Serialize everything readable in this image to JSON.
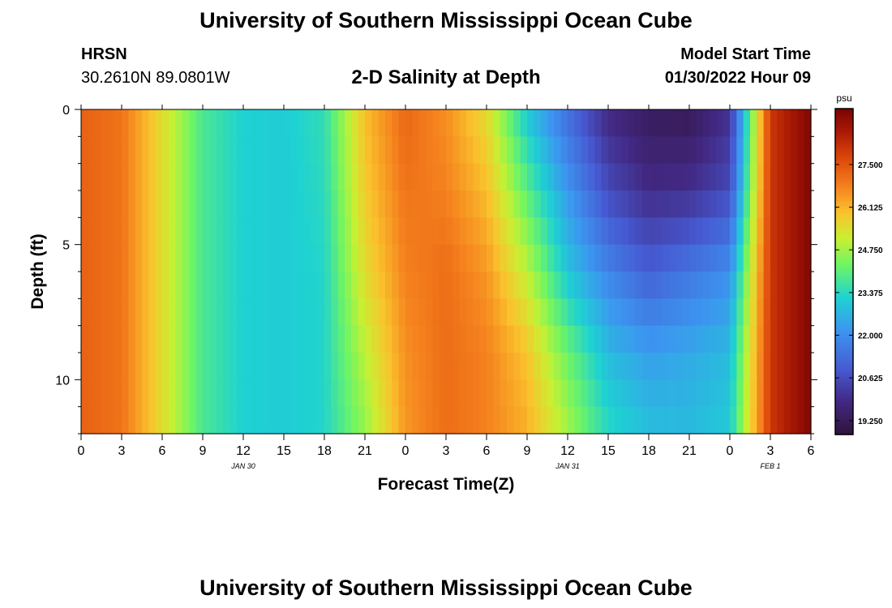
{
  "page": {
    "title": "University of Southern Mississippi Ocean Cube",
    "bottom_title": "University of Southern Mississippi Ocean Cube",
    "station": "HRSN",
    "coordinates": "30.2610N  89.0801W",
    "subtitle": "2-D Salinity at Depth",
    "model_start_label": "Model Start Time",
    "model_start_value": "01/30/2022 Hour 09"
  },
  "chart_data": {
    "type": "heatmap",
    "title": "2-D Salinity at Depth",
    "xlabel": "Forecast Time(Z)",
    "ylabel": "Depth (ft)",
    "x_tick_labels": [
      "0",
      "3",
      "6",
      "9",
      "12",
      "15",
      "18",
      "21",
      "0",
      "3",
      "6",
      "9",
      "12",
      "15",
      "18",
      "21",
      "0",
      "3",
      "6"
    ],
    "x_range_hours": [
      0,
      54
    ],
    "date_labels": [
      {
        "text": "JAN 30",
        "hour": 12
      },
      {
        "text": "JAN 31",
        "hour": 36
      },
      {
        "text": "FEB 1",
        "hour": 51
      }
    ],
    "y_ticks": [
      0,
      5,
      10
    ],
    "ylim": [
      0,
      12
    ],
    "y_inverted": true,
    "colorbar": {
      "unit": "psu",
      "min": 18.8,
      "max": 29.3,
      "ticks": [
        "27.500",
        "26.125",
        "24.750",
        "23.375",
        "22.000",
        "20.625",
        "19.250"
      ],
      "tick_values": [
        27.5,
        26.125,
        24.75,
        23.375,
        22.0,
        20.625,
        19.25
      ]
    },
    "profile_hours": [
      0,
      3,
      6,
      9,
      12,
      15,
      18,
      21,
      24,
      27,
      30,
      33,
      36,
      39,
      42,
      45,
      48,
      51,
      54
    ],
    "profile_depths": [
      0,
      3,
      6,
      9,
      12
    ],
    "salinity_profiles": [
      [
        27.3,
        27.3,
        27.3,
        27.3,
        27.3
      ],
      [
        27.0,
        27.0,
        27.0,
        27.0,
        27.0
      ],
      [
        25.5,
        25.5,
        25.5,
        25.5,
        25.5
      ],
      [
        23.8,
        23.8,
        23.8,
        23.8,
        23.8
      ],
      [
        23.2,
        23.2,
        23.2,
        23.2,
        23.2
      ],
      [
        23.1,
        23.1,
        23.1,
        23.1,
        23.1
      ],
      [
        23.5,
        23.4,
        23.3,
        23.3,
        23.3
      ],
      [
        26.0,
        25.8,
        25.5,
        25.0,
        24.6
      ],
      [
        27.2,
        27.0,
        26.8,
        26.6,
        26.5
      ],
      [
        26.6,
        26.8,
        27.1,
        27.1,
        27.1
      ],
      [
        25.5,
        26.0,
        26.5,
        26.8,
        26.8
      ],
      [
        23.0,
        24.0,
        25.0,
        25.9,
        26.2
      ],
      [
        21.3,
        22.2,
        23.0,
        24.2,
        24.8
      ],
      [
        19.8,
        20.6,
        21.8,
        22.8,
        23.4
      ],
      [
        19.3,
        19.9,
        21.0,
        22.3,
        22.9
      ],
      [
        19.2,
        20.0,
        21.5,
        22.5,
        22.8
      ],
      [
        20.0,
        20.6,
        22.0,
        22.8,
        23.1
      ],
      [
        28.0,
        28.0,
        28.0,
        28.0,
        28.0
      ],
      [
        29.2,
        29.2,
        29.2,
        29.2,
        29.2
      ]
    ]
  }
}
